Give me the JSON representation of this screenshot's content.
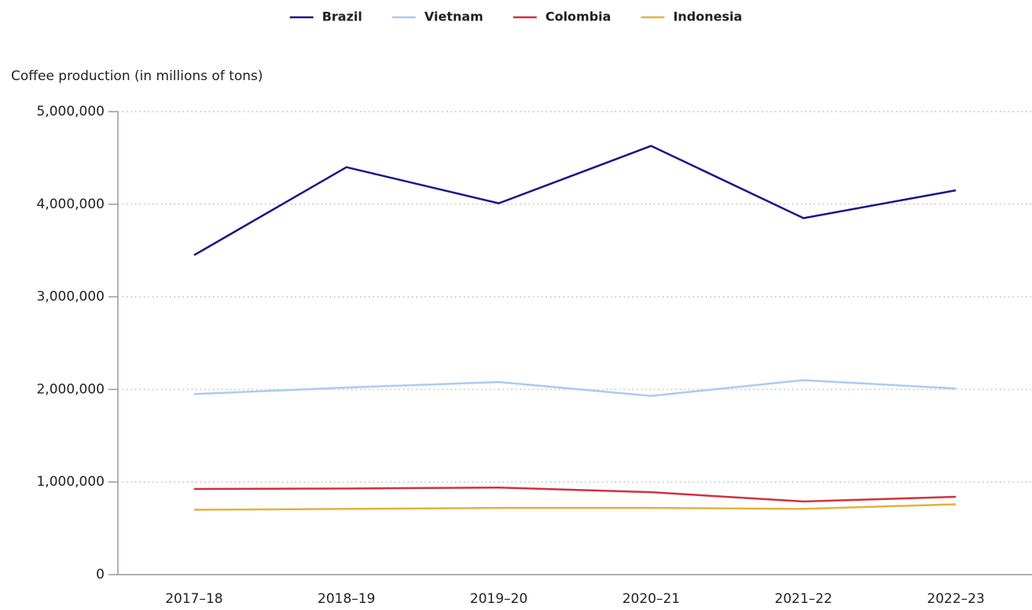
{
  "chart_data": {
    "type": "line",
    "y_label": "Coffee production (in millions of tons)",
    "categories": [
      "2017–18",
      "2018–19",
      "2019–20",
      "2020–21",
      "2021–22",
      "2022–23"
    ],
    "series": [
      {
        "name": "Brazil",
        "color": "#17178e",
        "values": [
          3450000,
          4400000,
          4010000,
          4630000,
          3850000,
          4150000
        ]
      },
      {
        "name": "Vietnam",
        "color": "#a9cbf5",
        "values": [
          1950000,
          2020000,
          2080000,
          1930000,
          2100000,
          2010000
        ]
      },
      {
        "name": "Colombia",
        "color": "#d1313d",
        "values": [
          925000,
          930000,
          940000,
          890000,
          790000,
          840000
        ]
      },
      {
        "name": "Indonesia",
        "color": "#e3b23c",
        "values": [
          700000,
          710000,
          720000,
          720000,
          710000,
          760000
        ]
      }
    ],
    "ylim": [
      0,
      5000000
    ],
    "yticks": [
      0,
      {
        "value": 1000000,
        "label": "1,000,000"
      },
      {
        "value": 2000000,
        "label": "2,000,000"
      },
      {
        "value": 3000000,
        "label": "3,000,000"
      },
      {
        "value": 4000000,
        "label": "4,000,000"
      },
      {
        "value": 5000000,
        "label": "5,000,000"
      }
    ],
    "grid": true,
    "legend": "top"
  }
}
